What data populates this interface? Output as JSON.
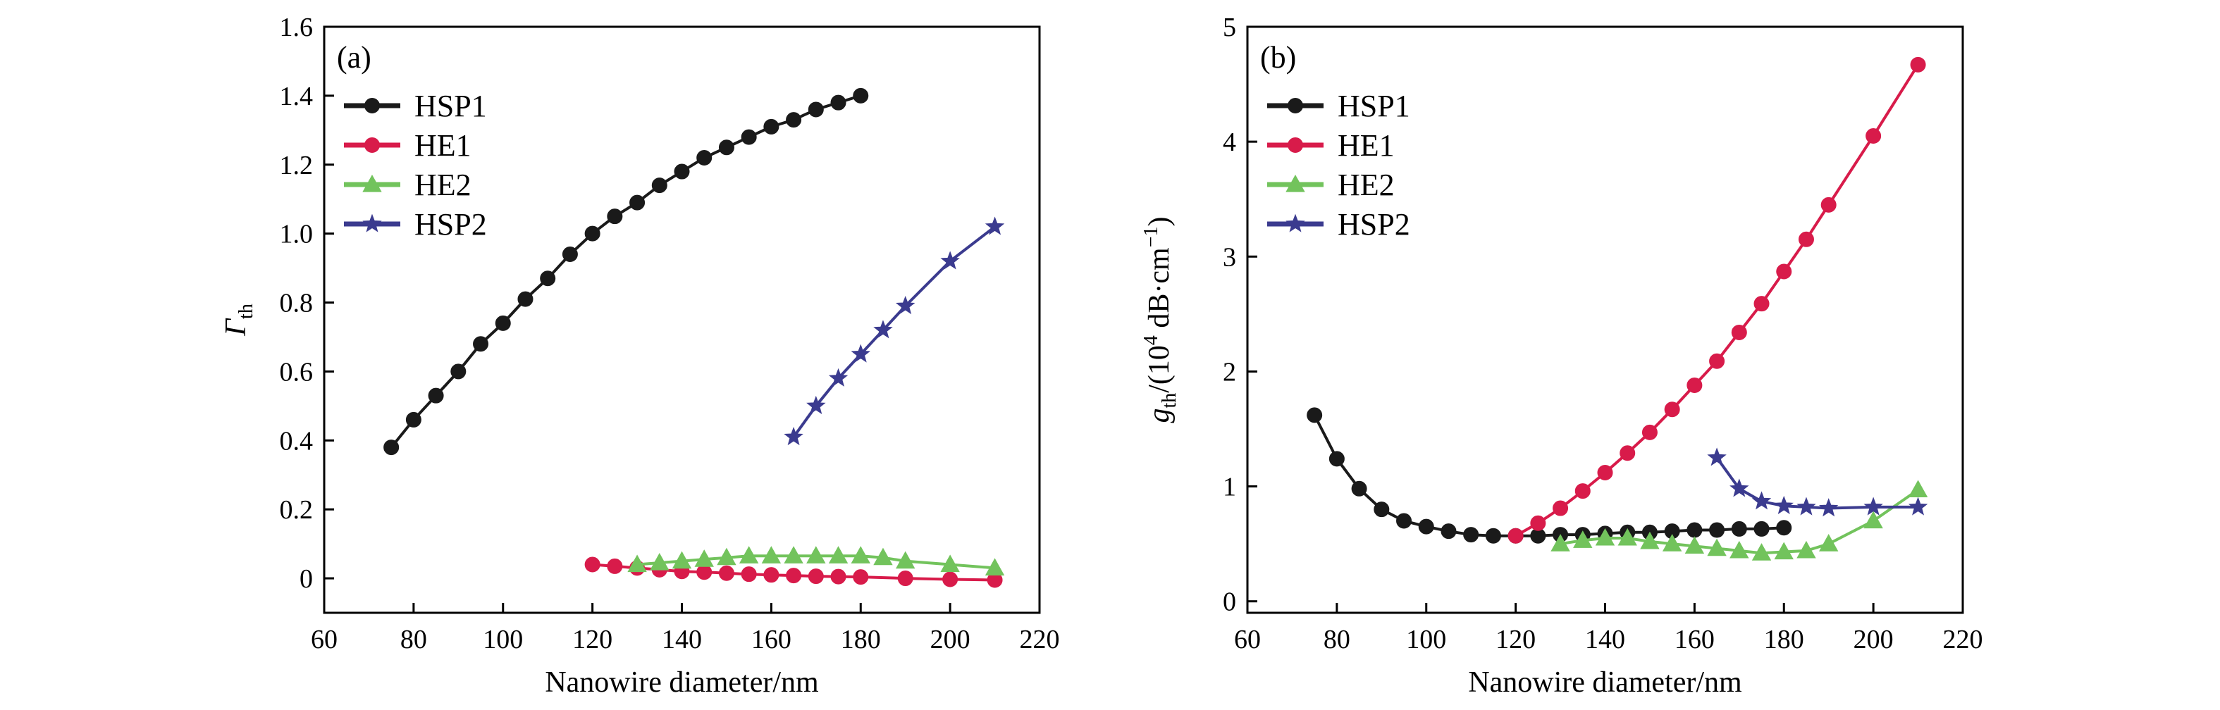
{
  "chart_data": [
    {
      "type": "line",
      "panel_label": "(a)",
      "xlabel": "Nanowire diameter/nm",
      "ylabel_main": "Γ",
      "ylabel_sub": "th",
      "xlim": [
        60,
        220
      ],
      "ylim": [
        -0.1,
        1.6
      ],
      "xticks": [
        60,
        80,
        100,
        120,
        140,
        160,
        180,
        200,
        220
      ],
      "yticks": [
        0,
        0.2,
        0.4,
        0.6,
        0.8,
        1.0,
        1.2,
        1.4,
        1.6
      ],
      "ytick_labels": [
        "0",
        "0.2",
        "0.4",
        "0.6",
        "0.8",
        "1.0",
        "1.2",
        "1.4",
        "1.6"
      ],
      "grid": false,
      "legend_position": "top-left",
      "series": [
        {
          "name": "HSP1",
          "color": "#1a1a1a",
          "marker": "circle",
          "x": [
            75,
            80,
            85,
            90,
            95,
            100,
            105,
            110,
            115,
            120,
            125,
            130,
            135,
            140,
            145,
            150,
            155,
            160,
            165,
            170,
            175,
            180
          ],
          "y": [
            0.38,
            0.46,
            0.53,
            0.6,
            0.68,
            0.74,
            0.81,
            0.87,
            0.94,
            1.0,
            1.05,
            1.09,
            1.14,
            1.18,
            1.22,
            1.25,
            1.28,
            1.31,
            1.33,
            1.36,
            1.38,
            1.4
          ]
        },
        {
          "name": "HE1",
          "color": "#d81b4a",
          "marker": "circle",
          "x": [
            120,
            125,
            130,
            135,
            140,
            145,
            150,
            155,
            160,
            165,
            170,
            175,
            180,
            190,
            200,
            210
          ],
          "y": [
            0.04,
            0.035,
            0.03,
            0.025,
            0.02,
            0.018,
            0.015,
            0.012,
            0.01,
            0.008,
            0.006,
            0.005,
            0.004,
            0.0,
            -0.003,
            -0.005
          ]
        },
        {
          "name": "HE2",
          "color": "#72c35c",
          "marker": "triangle",
          "x": [
            130,
            135,
            140,
            145,
            150,
            155,
            160,
            165,
            170,
            175,
            180,
            185,
            190,
            200,
            210
          ],
          "y": [
            0.04,
            0.045,
            0.05,
            0.055,
            0.06,
            0.065,
            0.065,
            0.065,
            0.065,
            0.065,
            0.065,
            0.06,
            0.05,
            0.04,
            0.03
          ]
        },
        {
          "name": "HSP2",
          "color": "#3b3b8f",
          "marker": "star",
          "x": [
            165,
            170,
            175,
            180,
            185,
            190,
            200,
            210
          ],
          "y": [
            0.41,
            0.5,
            0.58,
            0.65,
            0.72,
            0.79,
            0.92,
            1.02
          ]
        }
      ]
    },
    {
      "type": "line",
      "panel_label": "(b)",
      "xlabel": "Nanowire diameter/nm",
      "ylabel_main": "g",
      "ylabel_sub": "th",
      "ylabel_rest": "/(10",
      "ylabel_sup": "4",
      "ylabel_tail": " dB·cm",
      "ylabel_sup2": "−1",
      "ylabel_end": ")",
      "xlim": [
        60,
        220
      ],
      "ylim": [
        -0.1,
        5
      ],
      "xticks": [
        60,
        80,
        100,
        120,
        140,
        160,
        180,
        200,
        220
      ],
      "yticks": [
        0,
        1,
        2,
        3,
        4,
        5
      ],
      "ytick_labels": [
        "0",
        "1",
        "2",
        "3",
        "4",
        "5"
      ],
      "grid": false,
      "legend_position": "top-left",
      "series": [
        {
          "name": "HSP1",
          "color": "#1a1a1a",
          "marker": "circle",
          "x": [
            75,
            80,
            85,
            90,
            95,
            100,
            105,
            110,
            115,
            120,
            125,
            130,
            135,
            140,
            145,
            150,
            155,
            160,
            165,
            170,
            175,
            180
          ],
          "y": [
            1.62,
            1.24,
            0.98,
            0.8,
            0.7,
            0.65,
            0.61,
            0.58,
            0.57,
            0.57,
            0.57,
            0.58,
            0.58,
            0.59,
            0.6,
            0.6,
            0.61,
            0.62,
            0.62,
            0.63,
            0.63,
            0.64
          ]
        },
        {
          "name": "HE1",
          "color": "#d81b4a",
          "marker": "circle",
          "x": [
            120,
            125,
            130,
            135,
            140,
            145,
            150,
            155,
            160,
            165,
            170,
            175,
            180,
            185,
            190,
            200,
            210
          ],
          "y": [
            0.57,
            0.68,
            0.81,
            0.96,
            1.12,
            1.29,
            1.47,
            1.67,
            1.88,
            2.09,
            2.34,
            2.59,
            2.87,
            3.15,
            3.45,
            4.05,
            4.67
          ]
        },
        {
          "name": "HE2",
          "color": "#72c35c",
          "marker": "triangle",
          "x": [
            130,
            135,
            140,
            145,
            150,
            155,
            160,
            165,
            170,
            175,
            180,
            185,
            190,
            200,
            210
          ],
          "y": [
            0.5,
            0.53,
            0.55,
            0.55,
            0.52,
            0.5,
            0.48,
            0.46,
            0.44,
            0.42,
            0.43,
            0.44,
            0.5,
            0.7,
            0.97
          ]
        },
        {
          "name": "HSP2",
          "color": "#3b3b8f",
          "marker": "star",
          "x": [
            165,
            170,
            175,
            180,
            185,
            190,
            200,
            210
          ],
          "y": [
            1.25,
            0.98,
            0.87,
            0.83,
            0.82,
            0.81,
            0.82,
            0.82
          ]
        }
      ]
    }
  ]
}
